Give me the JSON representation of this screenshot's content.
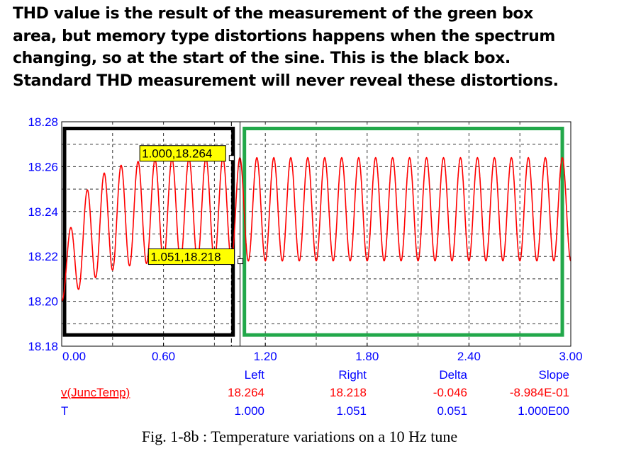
{
  "heading": {
    "lines": [
      "THD value is the result of the measurement of the green box",
      "area, but memory type distortions happens when the spectrum",
      "changing, so at the start of the sine. This is the black box.",
      "Standard THD measurement will never reveal these distortions."
    ]
  },
  "chart_data": {
    "type": "line",
    "x_range": [
      0.0,
      3.0
    ],
    "ylim": [
      18.18,
      18.28
    ],
    "x_ticks": [
      "0.00",
      "0.60",
      "1.20",
      "1.80",
      "2.40",
      "3.00"
    ],
    "y_ticks": [
      "18.28",
      "18.26",
      "18.24",
      "18.22",
      "18.20",
      "18.18"
    ],
    "grid": "dashed",
    "signal": {
      "frequency_hz": 10,
      "center": 18.241,
      "steady_amplitude": 0.023,
      "initial_dip": 18.198,
      "settling_time": 0.4
    },
    "series": [
      {
        "name": "v(JuncTemp)",
        "color": "#ff0000"
      }
    ],
    "cursors": [
      {
        "x": 1.0,
        "y": 18.264,
        "label": "1.000,18.264"
      },
      {
        "x": 1.051,
        "y": 18.218,
        "label": "1.051,18.218"
      }
    ],
    "boxes": [
      {
        "color": "#000000",
        "x0": 0.0,
        "x1": 1.01,
        "y0": 18.185,
        "y1": 18.277
      },
      {
        "color": "#22a84a",
        "x0": 1.06,
        "x1": 2.95,
        "y0": 18.185,
        "y1": 18.277
      }
    ]
  },
  "readout": {
    "headers": [
      "Left",
      "Right",
      "Delta",
      "Slope"
    ],
    "rows": [
      {
        "name": "v(JuncTemp)",
        "left": "18.264",
        "right": "18.218",
        "delta": "-0.046",
        "slope": "-8.984E-01",
        "color": "#ff0000"
      },
      {
        "name": "T",
        "left": "1.000",
        "right": "1.051",
        "delta": "0.051",
        "slope": "1.000E00",
        "color": "#0000ff"
      }
    ]
  },
  "caption": "Fig. 1-8b : Temperature variations on a 10 Hz tune"
}
